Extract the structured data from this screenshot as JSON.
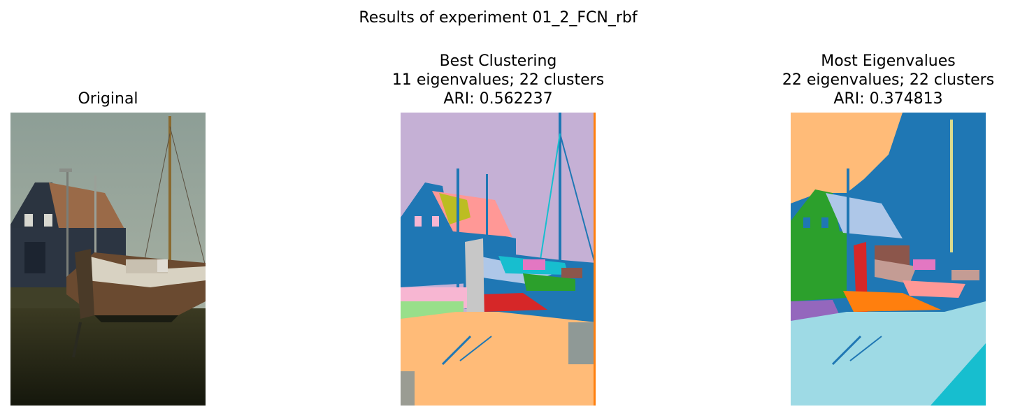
{
  "figure": {
    "suptitle": "Results of experiment 01_2_FCN_rbf"
  },
  "panels": [
    {
      "title_lines": [
        "Original"
      ],
      "image_kind": "photo"
    },
    {
      "title_lines": [
        "Best Clustering",
        "11 eigenvalues; 22 clusters",
        "ARI: 0.562237"
      ],
      "image_kind": "segmentation"
    },
    {
      "title_lines": [
        "Most Eigenvalues",
        "22 eigenvalues; 22 clusters",
        "ARI: 0.374813"
      ],
      "image_kind": "segmentation"
    }
  ],
  "palette": {
    "sky_photo": "#98a8a0",
    "house_dark": "#2b3440",
    "roof_brown": "#9a6a48",
    "ground_photo": "#3a3a22",
    "hull_white": "#d8d2c2",
    "tab_lilac": "#c5b0d5",
    "tab_blue": "#1f77b4",
    "tab_peach": "#ffbb78",
    "tab_red": "#d62728",
    "tab_green": "#2ca02c",
    "tab_pink": "#f7b6d2",
    "tab_gray": "#c7c7c7",
    "tab_olive": "#bcbd22",
    "tab_salmon": "#ff9896",
    "tab_lightgreen": "#98df8a",
    "tab_cyan": "#17becf",
    "tab_orchid": "#e377c2",
    "tab_brown": "#8c564b",
    "tab_lightblue": "#aec7e8",
    "tab_lightcyan": "#9edae5",
    "tab_orange": "#ff7f0e",
    "tab_purple": "#9467bd",
    "tab_tan": "#c49c94",
    "tab_khaki": "#dbdb8d"
  }
}
